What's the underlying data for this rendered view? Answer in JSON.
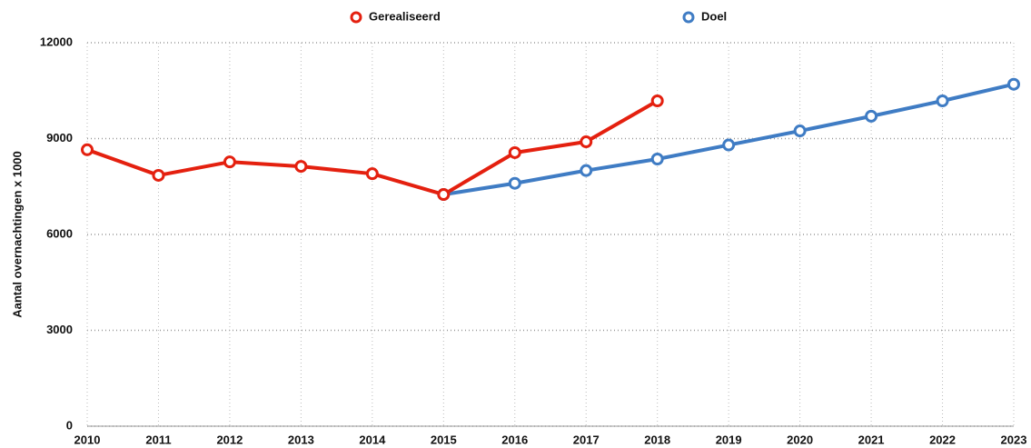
{
  "chart_data": {
    "type": "line",
    "y_label": "Aantal overnachtingen x 1000",
    "x": [
      2010,
      2011,
      2012,
      2013,
      2014,
      2015,
      2016,
      2017,
      2018,
      2019,
      2020,
      2021,
      2022,
      2023
    ],
    "series": [
      {
        "name": "Gerealiseerd",
        "color": "#e4200f",
        "values": [
          8650,
          7850,
          8270,
          8130,
          7900,
          7250,
          8560,
          8900,
          10180,
          null,
          null,
          null,
          null,
          null
        ]
      },
      {
        "name": "Doel",
        "color": "#3f7cc4",
        "values": [
          null,
          null,
          null,
          null,
          null,
          7250,
          7600,
          8000,
          8360,
          8800,
          9240,
          9700,
          10180,
          10700
        ]
      }
    ],
    "xlim": [
      2010,
      2023
    ],
    "xticks": [
      2010,
      2011,
      2012,
      2013,
      2014,
      2015,
      2016,
      2017,
      2018,
      2019,
      2020,
      2021,
      2022,
      2023
    ],
    "ylim": [
      0,
      12000
    ],
    "yticks": [
      0,
      3000,
      6000,
      9000,
      12000
    ],
    "grid": true,
    "legend": "top"
  }
}
